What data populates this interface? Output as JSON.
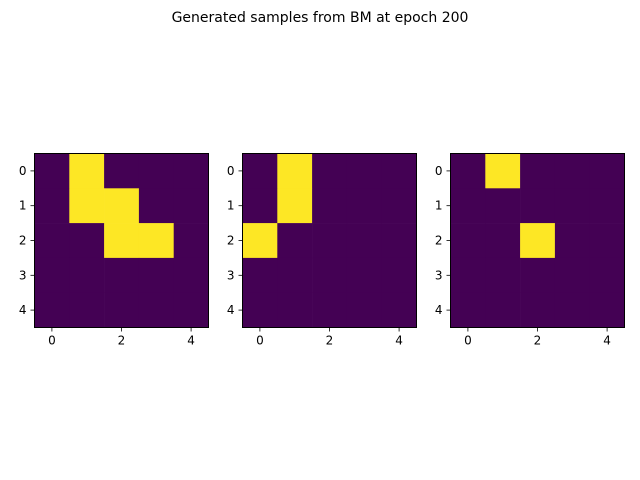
{
  "title": "Generated samples from BM at epoch 200",
  "colors": {
    "off": "#440154",
    "on": "#fde725",
    "axis": "#000000",
    "background": "#ffffff"
  },
  "chart_data": [
    {
      "type": "heatmap",
      "colormap": "viridis",
      "xticks": [
        0,
        2,
        4
      ],
      "yticks": [
        0,
        1,
        2,
        3,
        4
      ],
      "xlim": [
        -0.5,
        4.5
      ],
      "ylim": [
        4.5,
        -0.5
      ],
      "grid": [
        [
          0,
          1,
          0,
          0,
          0
        ],
        [
          0,
          1,
          1,
          0,
          0
        ],
        [
          0,
          0,
          1,
          1,
          0
        ],
        [
          0,
          0,
          0,
          0,
          0
        ],
        [
          0,
          0,
          0,
          0,
          0
        ]
      ]
    },
    {
      "type": "heatmap",
      "colormap": "viridis",
      "xticks": [
        0,
        2,
        4
      ],
      "yticks": [
        0,
        1,
        2,
        3,
        4
      ],
      "xlim": [
        -0.5,
        4.5
      ],
      "ylim": [
        4.5,
        -0.5
      ],
      "grid": [
        [
          0,
          1,
          0,
          0,
          0
        ],
        [
          0,
          1,
          0,
          0,
          0
        ],
        [
          1,
          0,
          0,
          0,
          0
        ],
        [
          0,
          0,
          0,
          0,
          0
        ],
        [
          0,
          0,
          0,
          0,
          0
        ]
      ]
    },
    {
      "type": "heatmap",
      "colormap": "viridis",
      "xticks": [
        0,
        2,
        4
      ],
      "yticks": [
        0,
        1,
        2,
        3,
        4
      ],
      "xlim": [
        -0.5,
        4.5
      ],
      "ylim": [
        4.5,
        -0.5
      ],
      "grid": [
        [
          0,
          1,
          0,
          0,
          0
        ],
        [
          0,
          0,
          0,
          0,
          0
        ],
        [
          0,
          0,
          1,
          0,
          0
        ],
        [
          0,
          0,
          0,
          0,
          0
        ],
        [
          0,
          0,
          0,
          0,
          0
        ]
      ]
    }
  ]
}
